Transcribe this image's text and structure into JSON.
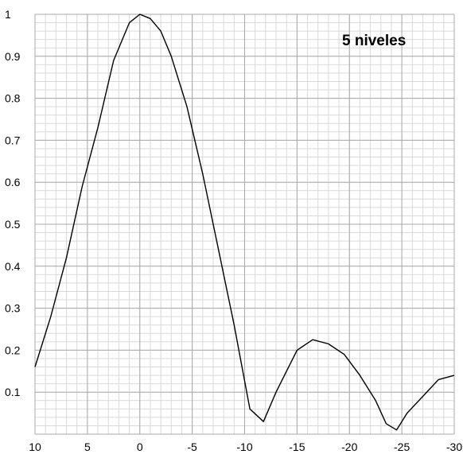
{
  "chart_data": {
    "type": "line",
    "title": "",
    "xlabel": "",
    "ylabel": "",
    "annotation": "5 niveles",
    "xlim": [
      10,
      -30
    ],
    "ylim": [
      0,
      1
    ],
    "grid": true,
    "x_ticks": [
      "10",
      "5",
      "0",
      "-5",
      "-10",
      "-15",
      "-20",
      "-25",
      "-30"
    ],
    "y_ticks": [
      "0.1",
      "0.2",
      "0.3",
      "0.4",
      "0.5",
      "0.6",
      "0.7",
      "0.8",
      "0.9",
      "1"
    ],
    "colors": {
      "line": "#000000",
      "grid_major": "#a9a9a9",
      "grid_minor": "#d9d9d9",
      "background": "#ffffff"
    },
    "series": [
      {
        "values": [
          [
            10,
            0.16
          ],
          [
            8.5,
            0.28
          ],
          [
            7,
            0.42
          ],
          [
            5.5,
            0.59
          ],
          [
            4,
            0.73
          ],
          [
            2.5,
            0.89
          ],
          [
            1,
            0.98
          ],
          [
            0,
            1.0
          ],
          [
            -1,
            0.99
          ],
          [
            -2,
            0.96
          ],
          [
            -3,
            0.9
          ],
          [
            -4.5,
            0.78
          ],
          [
            -6,
            0.62
          ],
          [
            -7.5,
            0.44
          ],
          [
            -9,
            0.26
          ],
          [
            -10.5,
            0.06
          ],
          [
            -11.8,
            0.03
          ],
          [
            -13,
            0.1
          ],
          [
            -15,
            0.2
          ],
          [
            -16.5,
            0.225
          ],
          [
            -18,
            0.215
          ],
          [
            -19.5,
            0.19
          ],
          [
            -21,
            0.14
          ],
          [
            -22.5,
            0.08
          ],
          [
            -23.5,
            0.025
          ],
          [
            -24.5,
            0.01
          ],
          [
            -25.5,
            0.05
          ],
          [
            -27,
            0.09
          ],
          [
            -28.5,
            0.13
          ],
          [
            -30,
            0.14
          ]
        ]
      }
    ]
  }
}
